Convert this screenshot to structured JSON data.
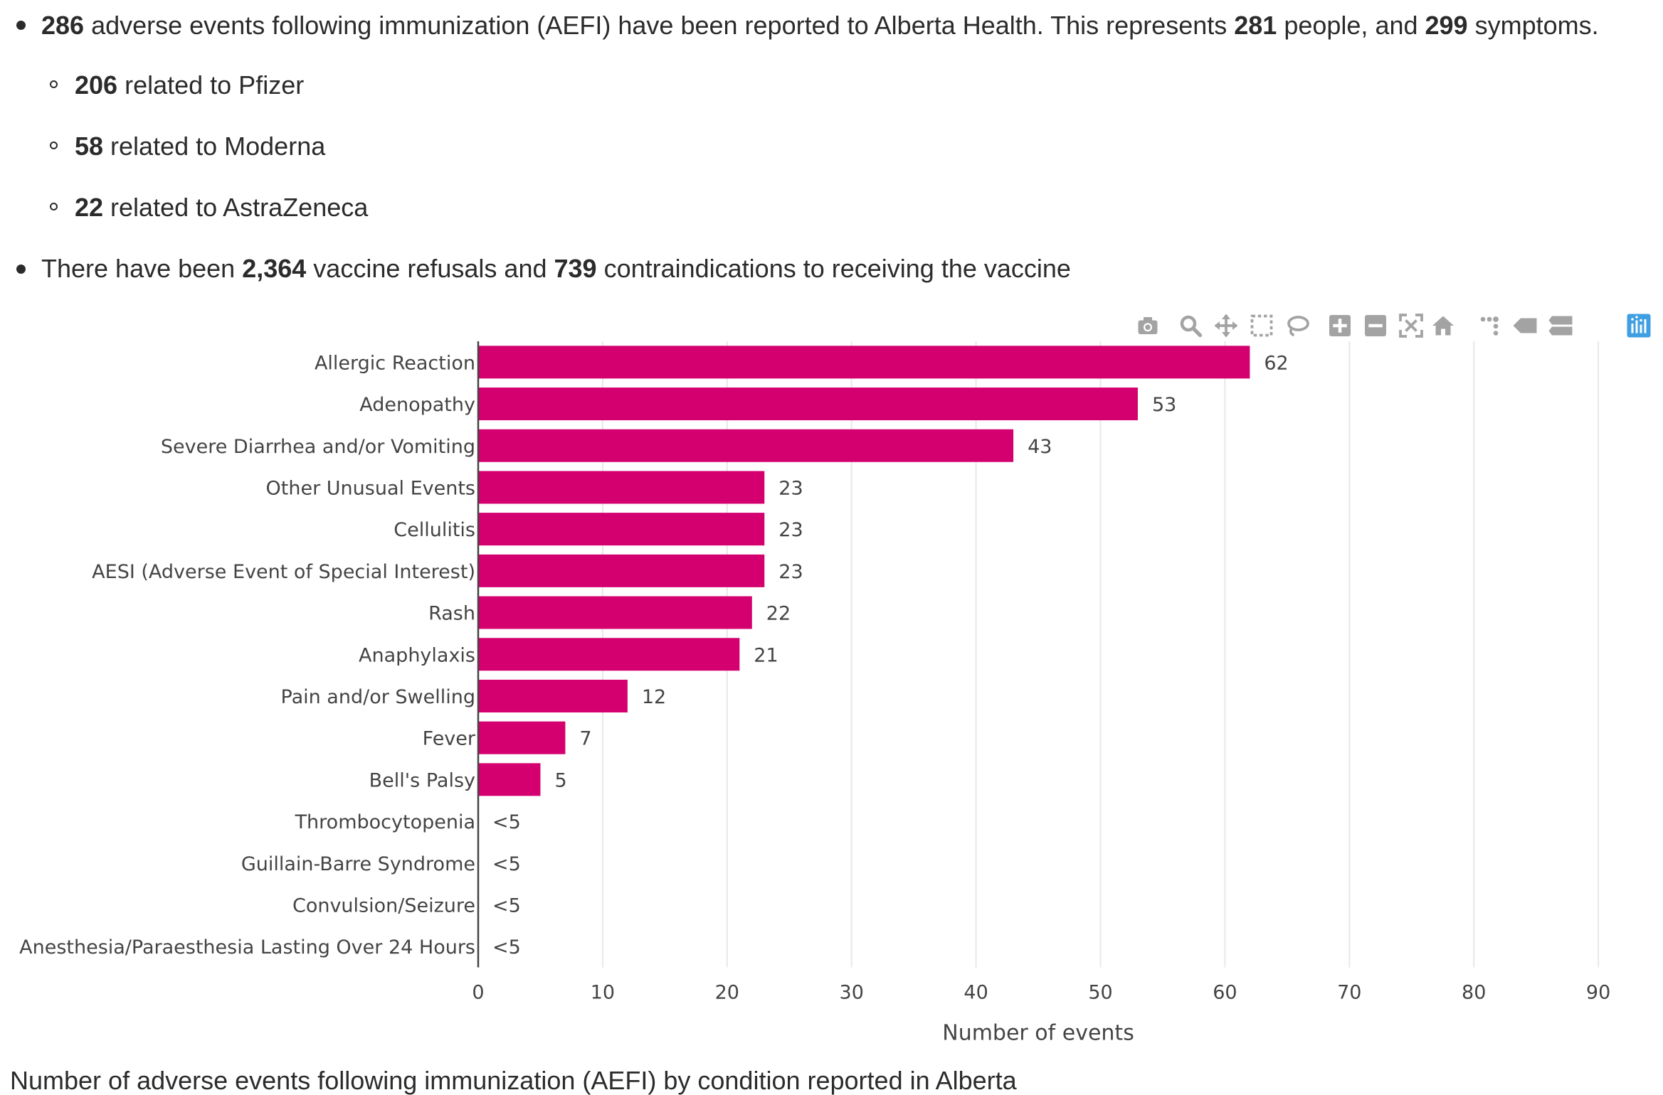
{
  "summary": {
    "line1": {
      "n1": "286",
      "t1": " adverse events following immunization (AEFI) have been reported to Alberta Health. This represents ",
      "n2": "281",
      "t2": " people, and ",
      "n3": "299",
      "t3": " symptoms."
    },
    "sub": [
      {
        "num": "206",
        "text": " related to Pfizer"
      },
      {
        "num": "58",
        "text": " related to Moderna"
      },
      {
        "num": "22",
        "text": " related to AstraZeneca"
      }
    ],
    "line2": {
      "t1": "There have been ",
      "n1": "2,364",
      "t2": " vaccine refusals and ",
      "n2": "739",
      "t3": " contraindications to receiving the vaccine"
    }
  },
  "modebar": {
    "icons": [
      "camera-icon",
      "zoom-icon",
      "pan-icon",
      "box-select-icon",
      "lasso-select-icon",
      "zoom-in-icon",
      "zoom-out-icon",
      "autoscale-icon",
      "reset-axes-icon",
      "spike-lines-icon",
      "hover-closest-icon",
      "hover-compare-icon",
      "plotly-logo-icon"
    ],
    "icon_color": "#a3a3a3",
    "logo_color": "#3f9fe2"
  },
  "chart_data": {
    "type": "bar",
    "orientation": "horizontal",
    "bar_color": "#d4006f",
    "categories": [
      "Allergic Reaction",
      "Adenopathy",
      "Severe Diarrhea and/or Vomiting",
      "Other Unusual Events",
      "Cellulitis",
      "AESI (Adverse Event of Special Interest)",
      "Rash",
      "Anaphylaxis",
      "Pain and/or Swelling",
      "Fever",
      "Bell's Palsy",
      "Thrombocytopenia",
      "Guillain-Barre Syndrome",
      "Convulsion/Seizure",
      "Anesthesia/Paraesthesia Lasting Over 24 Hours"
    ],
    "values": [
      62,
      53,
      43,
      23,
      23,
      23,
      22,
      21,
      12,
      7,
      5,
      0,
      0,
      0,
      0
    ],
    "labels": [
      "62",
      "53",
      "43",
      "23",
      "23",
      "23",
      "22",
      "21",
      "12",
      "7",
      "5",
      "<5",
      "<5",
      "<5",
      "<5"
    ],
    "xlim": [
      0,
      90
    ],
    "xticks": [
      0,
      10,
      20,
      30,
      40,
      50,
      60,
      70,
      80,
      90
    ],
    "xlabel": "Number of events",
    "grid": true
  },
  "caption": "Number of adverse events following immunization (AEFI) by condition reported in Alberta"
}
